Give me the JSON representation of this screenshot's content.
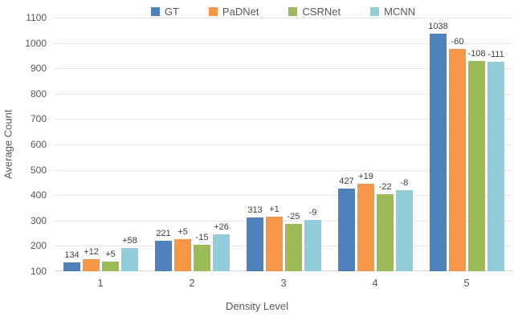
{
  "chart_data": {
    "type": "bar",
    "title": "",
    "xlabel": "Density Level",
    "ylabel": "Average Count",
    "ylim": [
      100,
      1100
    ],
    "ytick_step": 100,
    "categories": [
      "1",
      "2",
      "3",
      "4",
      "5"
    ],
    "series": [
      {
        "name": "GT",
        "color": "#4F81BD",
        "values": [
          134,
          221,
          313,
          427,
          1038
        ],
        "bar_labels": [
          "134",
          "221",
          "313",
          "427",
          "1038"
        ]
      },
      {
        "name": "PaDNet",
        "color": "#F79646",
        "values": [
          146,
          226,
          314,
          446,
          978
        ],
        "bar_labels": [
          "+12",
          "+5",
          "+1",
          "+19",
          "-60"
        ]
      },
      {
        "name": "CSRNet",
        "color": "#9BBB59",
        "values": [
          139,
          206,
          288,
          405,
          930
        ],
        "bar_labels": [
          "+5",
          "-15",
          "-25",
          "-22",
          "-108"
        ]
      },
      {
        "name": "MCNN",
        "color": "#92CDDC",
        "values": [
          192,
          247,
          304,
          419,
          927
        ],
        "bar_labels": [
          "+58",
          "+26",
          "-9",
          "-8",
          "-111"
        ]
      }
    ],
    "legend_position": "top",
    "grid": true
  },
  "colors": {
    "background": "#FFFFFF",
    "gridline": "#E6E6E6",
    "axis_line": "#D6D6D6",
    "axis_text": "#595959",
    "data_label": "#404040"
  }
}
